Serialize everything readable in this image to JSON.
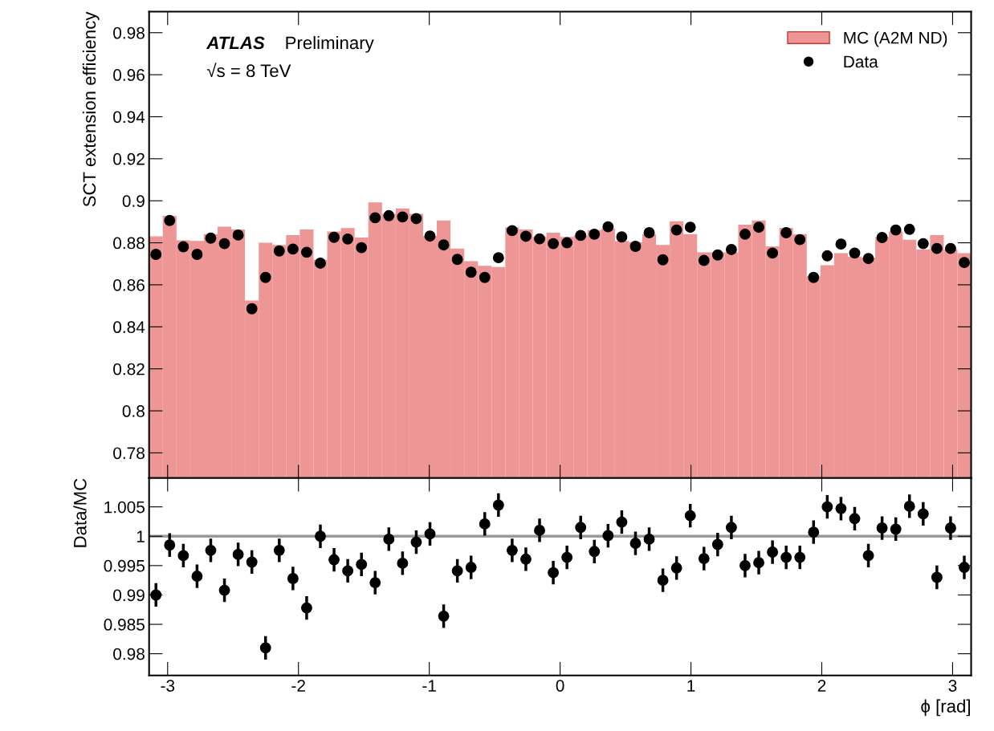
{
  "chart_data": [
    {
      "type": "histogram",
      "ylabel": "SCT extension efficiency",
      "annotations": [
        "ATLAS",
        "Preliminary",
        "√s = 8 TeV"
      ],
      "bins": [
        -3.1416,
        -3.0369,
        -2.9322,
        -2.8274,
        -2.7227,
        -2.618,
        -2.5133,
        -2.4086,
        -2.3038,
        -2.1991,
        -2.0944,
        -1.9897,
        -1.885,
        -1.7802,
        -1.6755,
        -1.5708,
        -1.4661,
        -1.3614,
        -1.2566,
        -1.1519,
        -1.0472,
        -0.9425,
        -0.8378,
        -0.733,
        -0.6283,
        -0.5236,
        -0.4189,
        -0.3142,
        -0.2094,
        -0.1047,
        0,
        0.1047,
        0.2094,
        0.3142,
        0.4189,
        0.5236,
        0.6283,
        0.733,
        0.8378,
        0.9425,
        1.0472,
        1.1519,
        1.2566,
        1.3614,
        1.4661,
        1.5708,
        1.6755,
        1.7802,
        1.885,
        1.9897,
        2.0944,
        2.1991,
        2.3038,
        2.4086,
        2.5133,
        2.618,
        2.7227,
        2.8274,
        2.9322,
        3.0369,
        3.1416
      ],
      "series": [
        {
          "name": "MC (A2M ND)",
          "type": "histogram",
          "color": "#ee9696",
          "values": [
            0.8831,
            0.8928,
            0.8812,
            0.8809,
            0.8841,
            0.8877,
            0.8863,
            0.8525,
            0.88,
            0.879,
            0.8837,
            0.8863,
            0.8719,
            0.8854,
            0.887,
            0.8825,
            0.8992,
            0.8938,
            0.8964,
            0.8938,
            0.8832,
            0.8906,
            0.8773,
            0.8712,
            0.869,
            0.8685,
            0.8874,
            0.8863,
            0.8828,
            0.8848,
            0.8828,
            0.8835,
            0.886,
            0.8867,
            0.8809,
            0.8803,
            0.8841,
            0.879,
            0.8902,
            0.8841,
            0.8754,
            0.8754,
            0.8754,
            0.8886,
            0.8906,
            0.8783,
            0.8871,
            0.8841,
            0.8641,
            0.8693,
            0.8751,
            0.8734,
            0.8729,
            0.8828,
            0.8854,
            0.8815,
            0.8768,
            0.8837,
            0.8768,
            0.8751
          ]
        },
        {
          "name": "Data",
          "type": "scatter",
          "color": "#000000",
          "x": [
            -3.0892,
            -2.9845,
            -2.8798,
            -2.7751,
            -2.6704,
            -2.5656,
            -2.4609,
            -2.3562,
            -2.2515,
            -2.1468,
            -2.042,
            -1.9373,
            -1.8326,
            -1.7279,
            -1.6232,
            -1.5184,
            -1.4137,
            -1.309,
            -1.2043,
            -1.0996,
            -0.9948,
            -0.8901,
            -0.7854,
            -0.6807,
            -0.576,
            -0.4712,
            -0.3665,
            -0.2618,
            -0.1571,
            -0.0524,
            0.0524,
            0.1571,
            0.2618,
            0.3665,
            0.4712,
            0.576,
            0.6807,
            0.7854,
            0.8901,
            0.9948,
            1.0996,
            1.2043,
            1.309,
            1.4137,
            1.5184,
            1.6232,
            1.7279,
            1.8326,
            1.9373,
            2.042,
            2.1468,
            2.2515,
            2.3562,
            2.4609,
            2.5656,
            2.6704,
            2.7751,
            2.8798,
            2.9845,
            3.0892
          ],
          "values": [
            0.8745,
            0.8906,
            0.8781,
            0.8745,
            0.8822,
            0.8796,
            0.8837,
            0.8486,
            0.8635,
            0.8761,
            0.877,
            0.8755,
            0.8703,
            0.8826,
            0.8818,
            0.8777,
            0.8919,
            0.8929,
            0.8923,
            0.8915,
            0.8832,
            0.879,
            0.8721,
            0.866,
            0.8635,
            0.8729,
            0.8858,
            0.8831,
            0.8819,
            0.8796,
            0.88,
            0.8835,
            0.8841,
            0.8876,
            0.8828,
            0.8783,
            0.8848,
            0.8719,
            0.8861,
            0.8874,
            0.8716,
            0.8742,
            0.8768,
            0.8841,
            0.8874,
            0.8751,
            0.8848,
            0.8815,
            0.8635,
            0.8738,
            0.8794,
            0.8751,
            0.8725,
            0.8825,
            0.8861,
            0.8864,
            0.8796,
            0.8773,
            0.8773,
            0.8706
          ]
        }
      ],
      "xlim": [
        -3.1416,
        3.1416
      ],
      "xticks": [
        -3,
        -2,
        -1,
        0,
        1,
        2,
        3
      ],
      "ylim": [
        0.768,
        0.99
      ],
      "yticks": [
        0.78,
        0.8,
        0.82,
        0.84,
        0.86,
        0.88,
        0.9,
        0.92,
        0.94,
        0.96,
        0.98
      ],
      "tick_labels": "y",
      "legend": "top right",
      "marker": "circle"
    },
    {
      "type": "scatter",
      "ylabel": "Data/MC",
      "xlabel": "ϕ [rad]",
      "x": [
        -3.0892,
        -2.9845,
        -2.8798,
        -2.7751,
        -2.6704,
        -2.5656,
        -2.4609,
        -2.3562,
        -2.2515,
        -2.1468,
        -2.042,
        -1.9373,
        -1.8326,
        -1.7279,
        -1.6232,
        -1.5184,
        -1.4137,
        -1.309,
        -1.2043,
        -1.0996,
        -0.9948,
        -0.8901,
        -0.7854,
        -0.6807,
        -0.576,
        -0.4712,
        -0.3665,
        -0.2618,
        -0.1571,
        -0.0524,
        0.0524,
        0.1571,
        0.2618,
        0.3665,
        0.4712,
        0.576,
        0.6807,
        0.7854,
        0.8901,
        0.9948,
        1.0996,
        1.2043,
        1.309,
        1.4137,
        1.5184,
        1.6232,
        1.7279,
        1.8326,
        1.9373,
        2.042,
        2.1468,
        2.2515,
        2.3562,
        2.4609,
        2.5656,
        2.6704,
        2.7751,
        2.8798,
        2.9845,
        3.0892
      ],
      "values": [
        0.99,
        0.9985,
        0.9967,
        0.9932,
        0.9976,
        0.9908,
        0.9969,
        0.9956,
        0.981,
        0.9976,
        0.9928,
        0.9878,
        1.0,
        0.996,
        0.9941,
        0.9952,
        0.9921,
        0.9995,
        0.9954,
        0.999,
        1.0004,
        0.9864,
        0.9941,
        0.9947,
        1.0021,
        1.0053,
        0.9976,
        0.9961,
        1.001,
        0.9938,
        0.9964,
        1.0015,
        0.9974,
        1.0001,
        1.0024,
        0.9988,
        0.9995,
        0.9925,
        0.9946,
        1.0035,
        0.9962,
        0.9986,
        1.0015,
        0.995,
        0.9955,
        0.9973,
        0.9964,
        0.9964,
        1.0007,
        1.005,
        1.0047,
        1.003,
        0.9967,
        1.0014,
        1.0012,
        1.0051,
        1.0038,
        0.993,
        1.0014,
        0.9947
      ],
      "errors": [
        0.002,
        0.002,
        0.002,
        0.002,
        0.002,
        0.002,
        0.002,
        0.002,
        0.002,
        0.002,
        0.002,
        0.002,
        0.002,
        0.002,
        0.002,
        0.002,
        0.002,
        0.002,
        0.002,
        0.002,
        0.002,
        0.002,
        0.002,
        0.002,
        0.002,
        0.002,
        0.002,
        0.002,
        0.002,
        0.002,
        0.002,
        0.002,
        0.002,
        0.002,
        0.002,
        0.002,
        0.002,
        0.002,
        0.002,
        0.002,
        0.002,
        0.002,
        0.002,
        0.002,
        0.002,
        0.002,
        0.002,
        0.002,
        0.002,
        0.002,
        0.002,
        0.002,
        0.002,
        0.002,
        0.002,
        0.002,
        0.002,
        0.002,
        0.002,
        0.002
      ],
      "color": "#000000",
      "marker": "circle",
      "ref_lines": [
        {
          "axis": "y",
          "value": 1,
          "color": "#999999"
        }
      ],
      "xlim": [
        -3.1416,
        3.1416
      ],
      "xticks": [
        -3,
        -2,
        -1,
        0,
        1,
        2,
        3
      ],
      "ylim": [
        0.9763,
        1.0099
      ],
      "yticks": [
        0.98,
        0.985,
        0.99,
        0.995,
        1,
        1.005
      ]
    }
  ]
}
